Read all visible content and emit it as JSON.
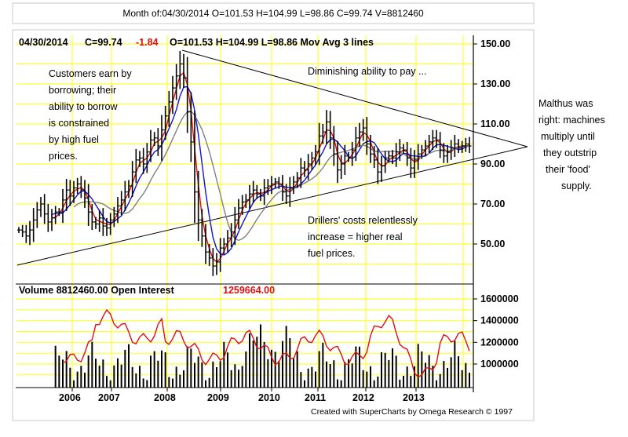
{
  "header": {
    "title_bar": "Month of:04/30/2014 O=101.53 H=104.99 L=98.86 C=99.74 V=8812460",
    "info_date": "04/30/2014",
    "info_close": "C=99.74",
    "info_change": "-1.84",
    "info_ohlc": "O=101.53  H=104.99  L=98.86  Mov Avg 3 lines"
  },
  "volume_header": {
    "label": "Volume  8812460.00  Open Interest",
    "oi_value": "1259664.00"
  },
  "annotations": {
    "customers": [
      "Customers earn by",
      "borrowing; their",
      "ability to borrow",
      "is constrained",
      "by high fuel",
      "prices."
    ],
    "diminishing": "Diminishing ability to pay ...",
    "drillers": [
      "Drillers' costs relentlessly",
      "increase = higher real",
      "fuel prices."
    ],
    "malthus": [
      "Malthus was",
      "right: machines",
      "multiply until",
      "they outstrip",
      "their 'food'",
      "supply."
    ]
  },
  "credit": "Created with SuperCharts by Omega Research © 1997",
  "colors": {
    "grid": "#ffff33",
    "price": "#000000",
    "ma_fast": "#e01010",
    "ma_mid": "#1010e0",
    "ma_slow": "#808080",
    "open_interest": "#e01010",
    "change": "#e01010"
  },
  "chart_data": [
    {
      "type": "ohlc",
      "x_tick_labels": [
        "2006",
        "2007",
        "2008",
        "2009",
        "2010",
        "2011",
        "2012",
        "2013"
      ],
      "y_tick_labels": [
        "150.00",
        "130.00",
        "110.00",
        "90.00",
        "70.00",
        "50.00"
      ],
      "ylim": [
        35,
        155
      ],
      "series": [
        {
          "name": "Mov Avg 3 lines",
          "values": []
        }
      ],
      "close_series": [
        57,
        56,
        54,
        57,
        62,
        67,
        70,
        65,
        61,
        63,
        66,
        66,
        72,
        77,
        74,
        78,
        80,
        77,
        73,
        66,
        61,
        60,
        63,
        59,
        58,
        62,
        65,
        69,
        72,
        76,
        79,
        86,
        92,
        93,
        90,
        96,
        102,
        103,
        99,
        107,
        114,
        121,
        128,
        134,
        140,
        133,
        116,
        101,
        76,
        62,
        54,
        46,
        43,
        39,
        41,
        48,
        50,
        53,
        56,
        62,
        68,
        71,
        72,
        75,
        77,
        75,
        74,
        78,
        79,
        80,
        81,
        80,
        76,
        74,
        78,
        81,
        83,
        88,
        87,
        90,
        93,
        96,
        104,
        106,
        111,
        103,
        95,
        87,
        90,
        94,
        93,
        97,
        103,
        106,
        108,
        100,
        95,
        92,
        86,
        89,
        93,
        94,
        93,
        96,
        98,
        97,
        93,
        88,
        92,
        95,
        97,
        99,
        101,
        103,
        102,
        97,
        94,
        96,
        98,
        100,
        98,
        99,
        100,
        99
      ]
    },
    {
      "type": "bar+line",
      "y_tick_labels": [
        "1600000",
        "1400000",
        "1200000",
        "1000000"
      ],
      "ylim": [
        800000,
        1700000
      ]
    }
  ]
}
